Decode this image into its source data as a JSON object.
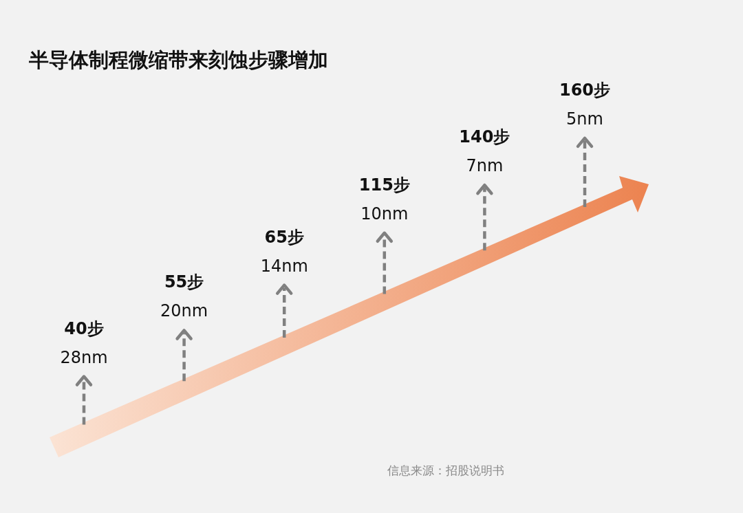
{
  "chart_data": {
    "type": "other",
    "title": "半导体制程微缩带来刻蚀步骤增加",
    "categories": [
      "28nm",
      "20nm",
      "14nm",
      "10nm",
      "7nm",
      "5nm"
    ],
    "values": [
      40,
      55,
      65,
      115,
      140,
      160
    ],
    "value_labels": [
      "40步",
      "55步",
      "65步",
      "115步",
      "140步",
      "160步"
    ],
    "color": "#ec8350",
    "annotations": [
      "信息来源：招股说明书"
    ]
  }
}
